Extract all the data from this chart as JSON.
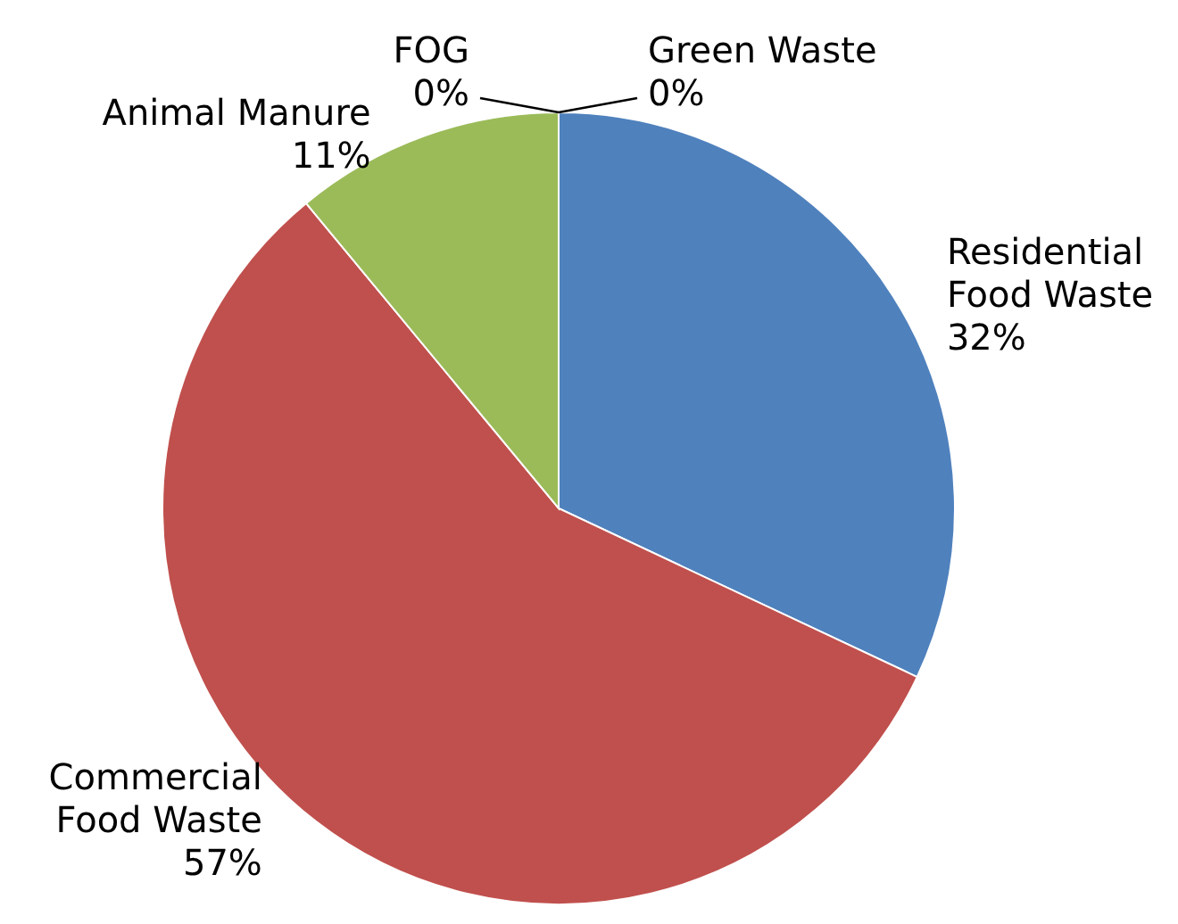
{
  "chart_data": {
    "type": "pie",
    "categories": [
      "Residential Food Waste",
      "Commercial Food Waste",
      "Animal Manure",
      "FOG",
      "Green Waste"
    ],
    "values": [
      32,
      57,
      11,
      0,
      0
    ],
    "value_labels": [
      "32%",
      "57%",
      "11%",
      "0%",
      "0%"
    ],
    "colors": [
      "#4f81bd",
      "#c0504d",
      "#9bbb59",
      "#8064a2",
      "#4bacc6"
    ]
  }
}
